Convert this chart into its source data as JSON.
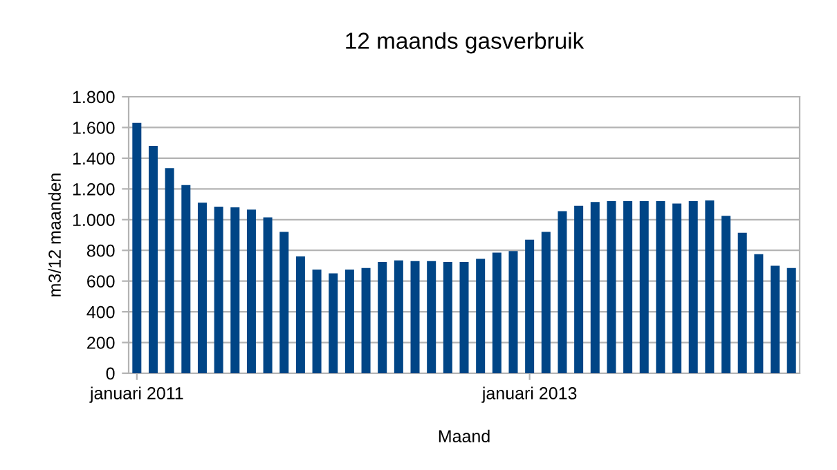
{
  "chart_data": {
    "type": "bar",
    "title": "12 maands gasverbruik",
    "xlabel": "Maand",
    "ylabel": "m3/12 maanden",
    "categories": [
      "januari 2011",
      null,
      null,
      null,
      null,
      null,
      null,
      null,
      null,
      null,
      null,
      null,
      null,
      null,
      null,
      null,
      null,
      null,
      null,
      null,
      null,
      null,
      null,
      null,
      "januari 2013",
      null,
      null,
      null,
      null,
      null,
      null,
      null,
      null,
      null,
      null,
      null,
      null,
      null,
      null,
      null,
      null
    ],
    "values": [
      1630,
      1480,
      1335,
      1225,
      1110,
      1085,
      1080,
      1065,
      1015,
      920,
      760,
      675,
      650,
      675,
      685,
      725,
      735,
      730,
      730,
      725,
      725,
      745,
      785,
      795,
      870,
      920,
      1055,
      1090,
      1115,
      1120,
      1120,
      1120,
      1120,
      1105,
      1120,
      1125,
      1025,
      915,
      775,
      700,
      685
    ],
    "color": "#004586",
    "ylim": [
      0,
      1800
    ],
    "yticks": [
      0,
      {
        "value": 200,
        "label": "200"
      },
      {
        "value": 400,
        "label": "400"
      },
      {
        "value": 600,
        "label": "600"
      },
      {
        "value": 800,
        "label": "800"
      },
      {
        "value": 1000,
        "label": "1.000"
      },
      {
        "value": 1200,
        "label": "1.200"
      },
      {
        "value": 1400,
        "label": "1.400"
      },
      {
        "value": 1600,
        "label": "1.600"
      },
      {
        "value": 1800,
        "label": "1.800"
      }
    ],
    "grid": "y",
    "legend": false
  }
}
